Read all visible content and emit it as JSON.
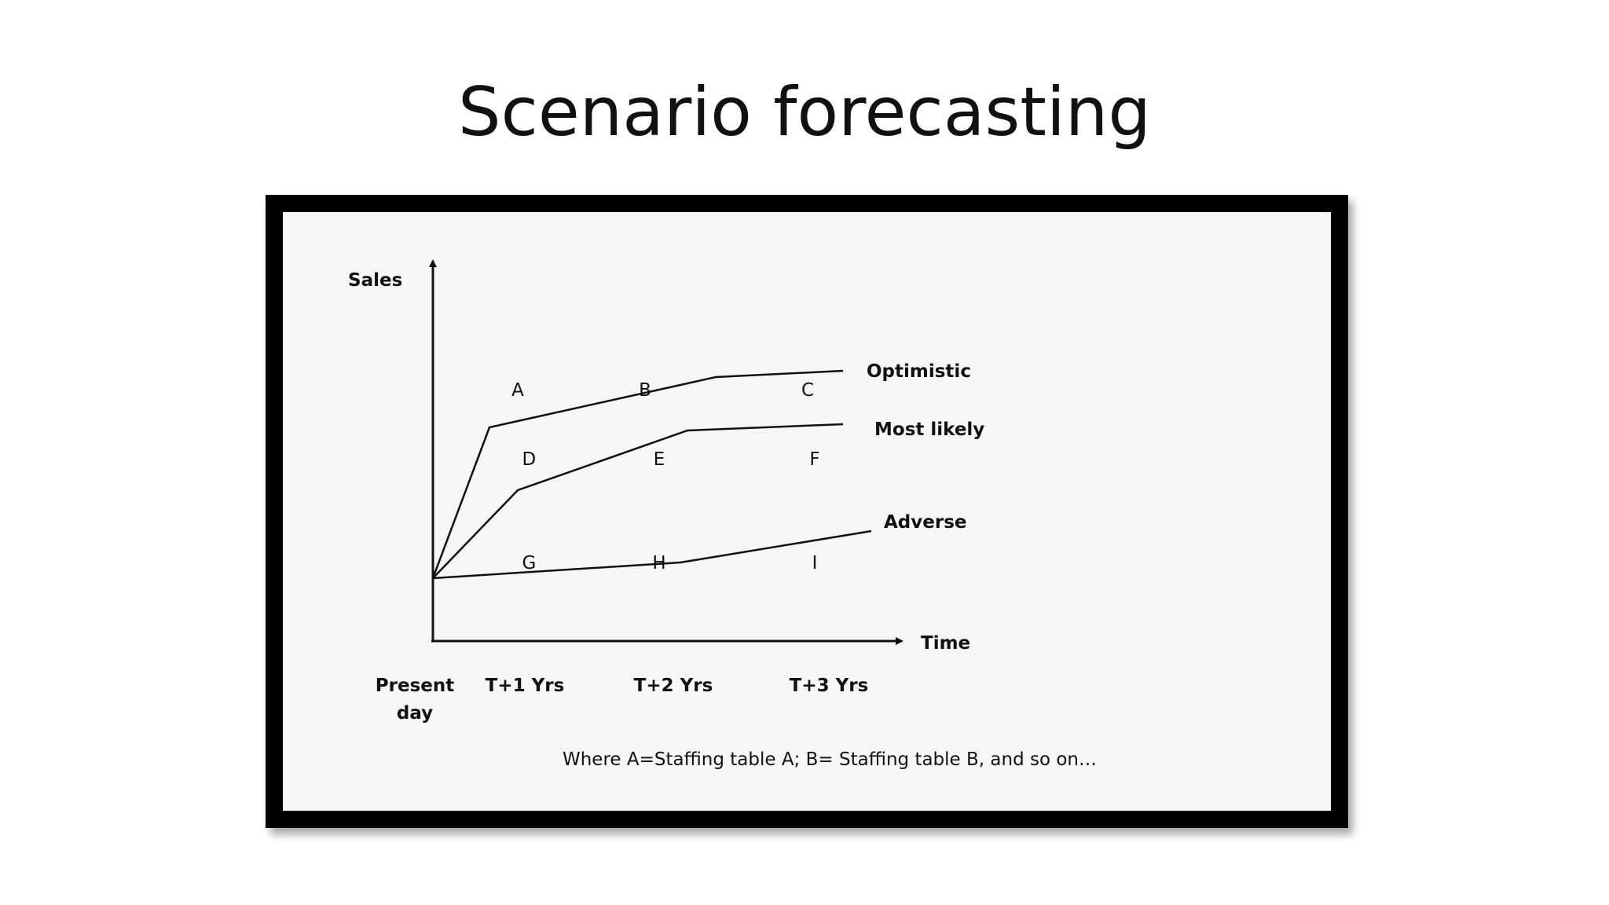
{
  "slide": {
    "title": "Scenario forecasting"
  },
  "chart_data": {
    "type": "line",
    "xlabel": "Time",
    "ylabel": "Sales",
    "categories": [
      "Present day",
      "T+1 Yrs",
      "T+2 Yrs",
      "T+3 Yrs"
    ],
    "axis_categories": [
      "Present\nday",
      "T+1 Yrs",
      "T+2 Yrs",
      "T+3 Yrs"
    ],
    "xlim": [
      0,
      3.6
    ],
    "ylim": [
      0,
      10
    ],
    "grid": false,
    "series": [
      {
        "name": "Optimistic",
        "x": [
          0,
          0.4,
          2.0,
          2.9
        ],
        "y": [
          2.0,
          6.8,
          8.4,
          8.6
        ],
        "annotations": [
          {
            "label": "A",
            "x": 0.6,
            "y": 8.0
          },
          {
            "label": "B",
            "x": 1.5,
            "y": 8.0
          },
          {
            "label": "C",
            "x": 2.65,
            "y": 8.0
          }
        ]
      },
      {
        "name": "Most likely",
        "x": [
          0,
          0.6,
          1.8,
          2.9
        ],
        "y": [
          2.0,
          4.8,
          6.7,
          6.9
        ],
        "annotations": [
          {
            "label": "D",
            "x": 0.68,
            "y": 5.8
          },
          {
            "label": "E",
            "x": 1.6,
            "y": 5.8
          },
          {
            "label": "F",
            "x": 2.7,
            "y": 5.8
          }
        ]
      },
      {
        "name": "Adverse",
        "x": [
          0,
          1.75,
          3.1
        ],
        "y": [
          2.0,
          2.5,
          3.5
        ],
        "annotations": [
          {
            "label": "G",
            "x": 0.68,
            "y": 2.5
          },
          {
            "label": "H",
            "x": 1.6,
            "y": 2.5
          },
          {
            "label": "I",
            "x": 2.7,
            "y": 2.5
          }
        ]
      }
    ],
    "footnote": "Where A=Staffing table A; B= Staffing table B, and so on…",
    "colors": {
      "line": "#111111",
      "frame": "#000000",
      "panel": "#f6f6f6"
    }
  }
}
